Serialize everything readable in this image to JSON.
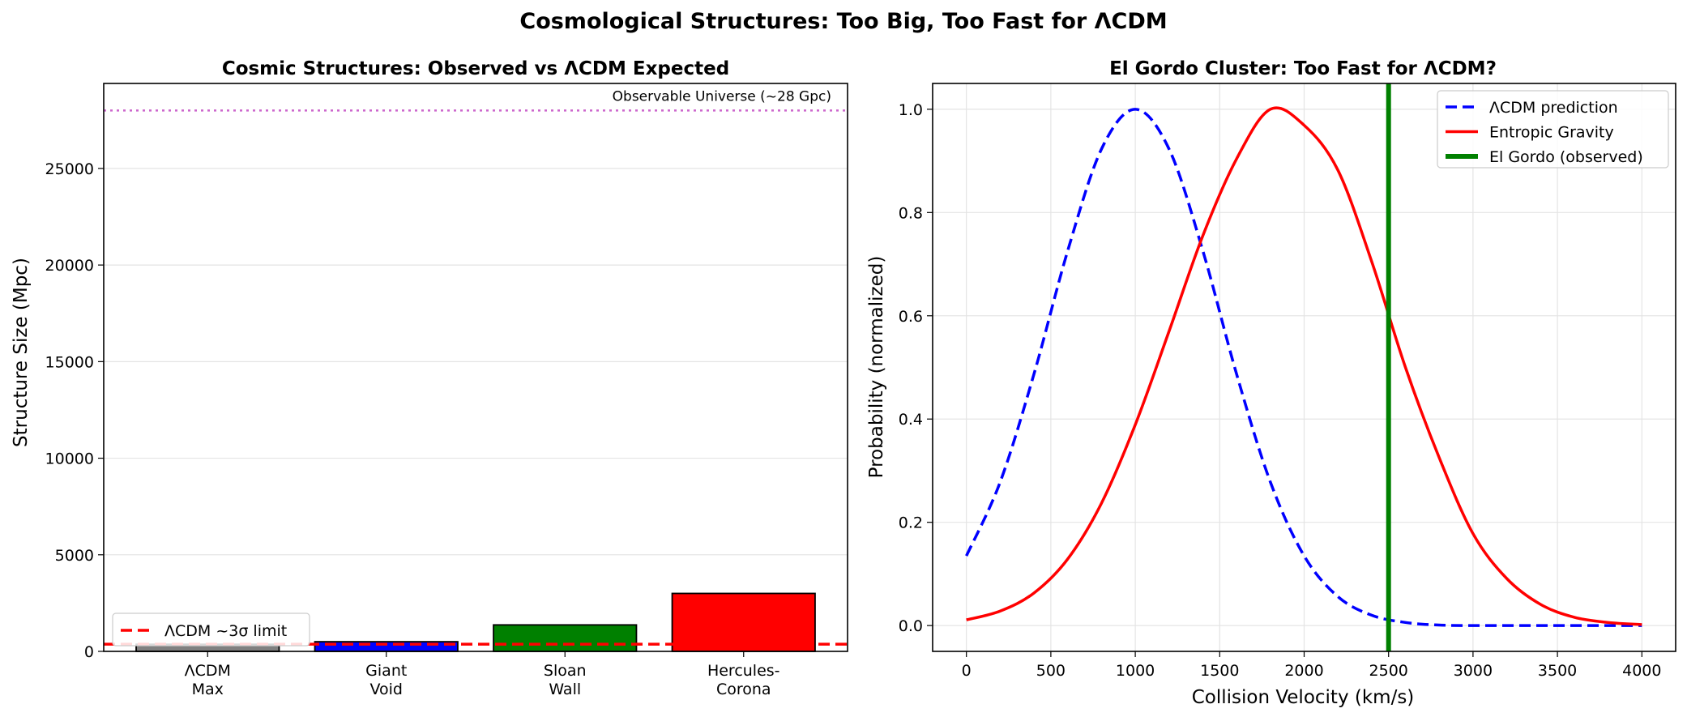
{
  "figure_title": "Cosmological Structures: Too Big, Too Fast for ΛCDM",
  "chart_data": [
    {
      "type": "bar",
      "title": "Cosmic Structures: Observed vs ΛCDM Expected",
      "xlabel": "",
      "ylabel": "Structure Size (Mpc)",
      "categories": [
        [
          "ΛCDM",
          "Max"
        ],
        [
          "Giant",
          "Void"
        ],
        [
          "Sloan",
          "Wall"
        ],
        [
          "Hercules-",
          "Corona"
        ]
      ],
      "values": [
        370,
        500,
        1370,
        3000
      ],
      "colors": [
        "#808080",
        "#0000ff",
        "#008000",
        "#ff0000"
      ],
      "ylim": [
        0,
        29400
      ],
      "yticks": [
        0,
        5000,
        10000,
        15000,
        20000,
        25000
      ],
      "grid": "y",
      "reference_lines": [
        {
          "label": "ΛCDM ~3σ limit",
          "value": 370,
          "color": "#ff0000",
          "style": "dashed",
          "in_legend": true
        },
        {
          "label": "Observable Universe (~28 Gpc)",
          "value": 28000,
          "color": "#cc66cc",
          "style": "dotted",
          "in_legend": false
        }
      ],
      "legend_position": "lower-left"
    },
    {
      "type": "line",
      "title": "El Gordo Cluster: Too Fast for ΛCDM?",
      "xlabel": "Collision Velocity (km/s)",
      "ylabel": "Probability (normalized)",
      "xlim": [
        -200,
        4200
      ],
      "ylim": [
        -0.05,
        1.05
      ],
      "xticks": [
        0,
        500,
        1000,
        1500,
        2000,
        2500,
        3000,
        3500,
        4000
      ],
      "yticks": [
        0.0,
        0.2,
        0.4,
        0.6,
        0.8,
        1.0
      ],
      "grid": true,
      "legend_position": "top-right",
      "series": [
        {
          "name": "ΛCDM prediction",
          "color": "#0000ff",
          "style": "dashed",
          "x": [
            0,
            200,
            400,
            600,
            800,
            1000,
            1200,
            1400,
            1600,
            1800,
            2000,
            2200,
            2400,
            2600,
            2800,
            3000,
            3200,
            3400,
            3600,
            3800,
            4000
          ],
          "y": [
            0.135,
            0.278,
            0.487,
            0.726,
            0.923,
            1.0,
            0.923,
            0.726,
            0.487,
            0.278,
            0.135,
            0.056,
            0.02,
            0.006,
            0.001,
            0.0,
            0.0,
            0.0,
            0.0,
            0.0,
            0.0
          ]
        },
        {
          "name": "Entropic Gravity",
          "color": "#ff0000",
          "style": "solid",
          "x": [
            0,
            200,
            400,
            600,
            800,
            1000,
            1200,
            1400,
            1600,
            1800,
            2000,
            2200,
            2400,
            2600,
            2800,
            3000,
            3200,
            3400,
            3600,
            3800,
            4000
          ],
          "y": [
            0.011,
            0.028,
            0.063,
            0.129,
            0.237,
            0.389,
            0.57,
            0.755,
            0.904,
            1.0,
            0.969,
            0.882,
            0.705,
            0.5,
            0.325,
            0.178,
            0.091,
            0.041,
            0.016,
            0.006,
            0.002
          ]
        },
        {
          "name": "El Gordo (observed)",
          "color": "#008000",
          "style": "vline",
          "value": 2500
        }
      ]
    }
  ]
}
